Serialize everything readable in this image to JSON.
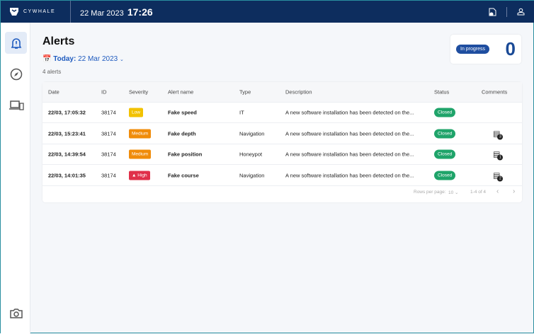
{
  "header": {
    "brand": "CYWHALE",
    "date": "22 Mar 2023",
    "time": "17:26"
  },
  "page": {
    "title": "Alerts",
    "date_prefix": "Today:",
    "date_value": "22 Mar 2023",
    "count": "4 alerts"
  },
  "status_card": {
    "label": "In progress",
    "value": "0"
  },
  "table": {
    "columns": [
      "Date",
      "ID",
      "Severity",
      "Alert name",
      "Type",
      "Description",
      "Status",
      "Comments"
    ],
    "rows": [
      {
        "date": "22/03, 17:05:32",
        "id": "38174",
        "severity": "Low",
        "severity_color": "#f2c200",
        "name": "Fake speed",
        "type": "IT",
        "description": "A new software installation has been detected on the...",
        "status": "Closed",
        "comments": ""
      },
      {
        "date": "22/03, 15:23:41",
        "id": "38174",
        "severity": "Medium",
        "severity_color": "#f08c0a",
        "name": "Fake depth",
        "type": "Navigation",
        "description": "A new software installation has been detected on the...",
        "status": "Closed",
        "comments": "3"
      },
      {
        "date": "22/03, 14:39:54",
        "id": "38174",
        "severity": "Medium",
        "severity_color": "#f08c0a",
        "name": "Fake position",
        "type": "Honeypot",
        "description": "A new software installation has been detected on the...",
        "status": "Closed",
        "comments": "1"
      },
      {
        "date": "22/03, 14:01:35",
        "id": "38174",
        "severity": "High",
        "severity_color": "#e0304a",
        "name": "Fake course",
        "type": "Navigation",
        "description": "A new software installation has been detected on the...",
        "status": "Closed",
        "comments": "2"
      }
    ]
  },
  "pagination": {
    "rows_per_page_label": "Rows per page:",
    "rows_per_page": "10",
    "range": "1-4 of 4"
  }
}
